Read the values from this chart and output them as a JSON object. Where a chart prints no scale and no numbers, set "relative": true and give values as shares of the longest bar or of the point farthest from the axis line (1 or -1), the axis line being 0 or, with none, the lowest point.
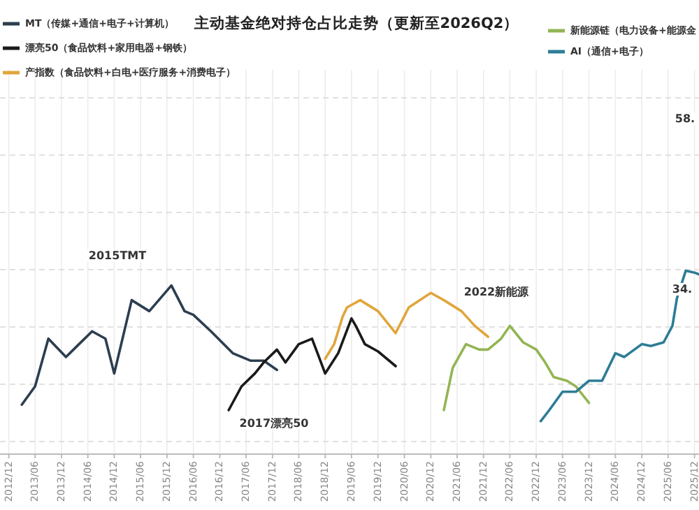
{
  "chart_data": {
    "type": "line",
    "title": "主动基金绝对持仓占比走势（更新至2026Q2）",
    "relative": true,
    "grid": true,
    "legend": "top",
    "xlim": [
      "2012-10",
      "2026-01"
    ],
    "xticks": [
      {
        "value": "2012-12",
        "label": "2012/12"
      },
      {
        "value": "2013-06",
        "label": "2013/06"
      },
      {
        "value": "2013-12",
        "label": "2013/12"
      },
      {
        "value": "2014-06",
        "label": "2014/06"
      },
      {
        "value": "2014-12",
        "label": "2014/12"
      },
      {
        "value": "2015-06",
        "label": "2015/06"
      },
      {
        "value": "2015-12",
        "label": "2015/12"
      },
      {
        "value": "2016-06",
        "label": "2016/06"
      },
      {
        "value": "2016-12",
        "label": "2016/12"
      },
      {
        "value": "2017-06",
        "label": "2017/06"
      },
      {
        "value": "2017-12",
        "label": "2017/12"
      },
      {
        "value": "2018-06",
        "label": "2018/06"
      },
      {
        "value": "2018-12",
        "label": "2018/12"
      },
      {
        "value": "2019-06",
        "label": "2019/06"
      },
      {
        "value": "2019-12",
        "label": "2019/12"
      },
      {
        "value": "2020-06",
        "label": "2020/06"
      },
      {
        "value": "2020-12",
        "label": "2020/12"
      },
      {
        "value": "2021-06",
        "label": "2021/06"
      },
      {
        "value": "2021-12",
        "label": "2021/12"
      },
      {
        "value": "2022-06",
        "label": "2022/06"
      },
      {
        "value": "2022-12",
        "label": "2022/12"
      },
      {
        "value": "2023-06",
        "label": "2023/06"
      },
      {
        "value": "2023-12",
        "label": "2023/12"
      },
      {
        "value": "2024-06",
        "label": "2024/06"
      },
      {
        "value": "2024-12",
        "label": "2024/12"
      },
      {
        "value": "2025-06",
        "label": "2025/06"
      },
      {
        "value": "2025-12",
        "label": "2025/12"
      }
    ],
    "series": [
      {
        "name": "MT（传媒+通信+电子+计算机）",
        "color": "#2c3e50",
        "x": [
          "2013-03",
          "2013-06",
          "2013-09",
          "2014-01",
          "2014-04",
          "2014-07",
          "2014-10",
          "2014-12",
          "2015-04",
          "2015-08",
          "2016-01",
          "2016-04",
          "2016-06",
          "2016-10",
          "2017-03",
          "2017-07",
          "2017-10",
          "2018-01"
        ],
        "values": [
          0.27,
          0.37,
          0.63,
          0.53,
          0.6,
          0.67,
          0.63,
          0.44,
          0.84,
          0.78,
          0.92,
          0.78,
          0.76,
          0.67,
          0.55,
          0.51,
          0.51,
          0.46
        ]
      },
      {
        "name": "漂亮50（食品饮料+家用电器+钢铁）",
        "color": "#1a1a1a",
        "x": [
          "2017-02",
          "2017-05",
          "2017-08",
          "2017-10",
          "2018-01",
          "2018-03",
          "2018-06",
          "2018-09",
          "2018-12",
          "2019-03",
          "2019-06",
          "2019-07",
          "2019-09",
          "2019-12",
          "2020-04"
        ],
        "values": [
          0.24,
          0.37,
          0.44,
          0.5,
          0.57,
          0.5,
          0.6,
          0.63,
          0.44,
          0.55,
          0.74,
          0.7,
          0.6,
          0.56,
          0.48
        ]
      },
      {
        "name": "产指数（食品饮料+白电+医疗服务+消费电子）",
        "color": "#e0a63c",
        "x": [
          "2018-12",
          "2019-02",
          "2019-04",
          "2019-05",
          "2019-08",
          "2019-12",
          "2020-04",
          "2020-07",
          "2020-12",
          "2021-03",
          "2021-07",
          "2021-10",
          "2022-01"
        ],
        "values": [
          0.52,
          0.6,
          0.75,
          0.8,
          0.84,
          0.78,
          0.66,
          0.8,
          0.88,
          0.84,
          0.78,
          0.7,
          0.64
        ]
      },
      {
        "name": "新能源链（电力设备+能源金",
        "color": "#93b553",
        "x": [
          "2021-03",
          "2021-05",
          "2021-08",
          "2021-11",
          "2022-01",
          "2022-04",
          "2022-06",
          "2022-09",
          "2022-12",
          "2023-02",
          "2023-04",
          "2023-07",
          "2023-09",
          "2023-12"
        ],
        "values": [
          0.24,
          0.47,
          0.6,
          0.57,
          0.57,
          0.63,
          0.7,
          0.61,
          0.57,
          0.5,
          0.42,
          0.4,
          0.37,
          0.28
        ]
      },
      {
        "name": "AI（通信+电子）",
        "color": "#2e7d96",
        "x": [
          "2023-01",
          "2023-03",
          "2023-06",
          "2023-09",
          "2023-12",
          "2024-03",
          "2024-06",
          "2024-08",
          "2024-12",
          "2025-02",
          "2025-05",
          "2025-07",
          "2025-08",
          "2025-10",
          "2025-12",
          "2026-01"
        ],
        "values": [
          0.18,
          0.24,
          0.34,
          0.34,
          0.4,
          0.4,
          0.55,
          0.53,
          0.6,
          0.59,
          0.61,
          0.7,
          0.85,
          1.0,
          0.99,
          0.98
        ]
      }
    ],
    "annotations": [
      "2015TMT",
      "2017漂亮50",
      "2022新能源",
      "34.",
      "58."
    ]
  }
}
